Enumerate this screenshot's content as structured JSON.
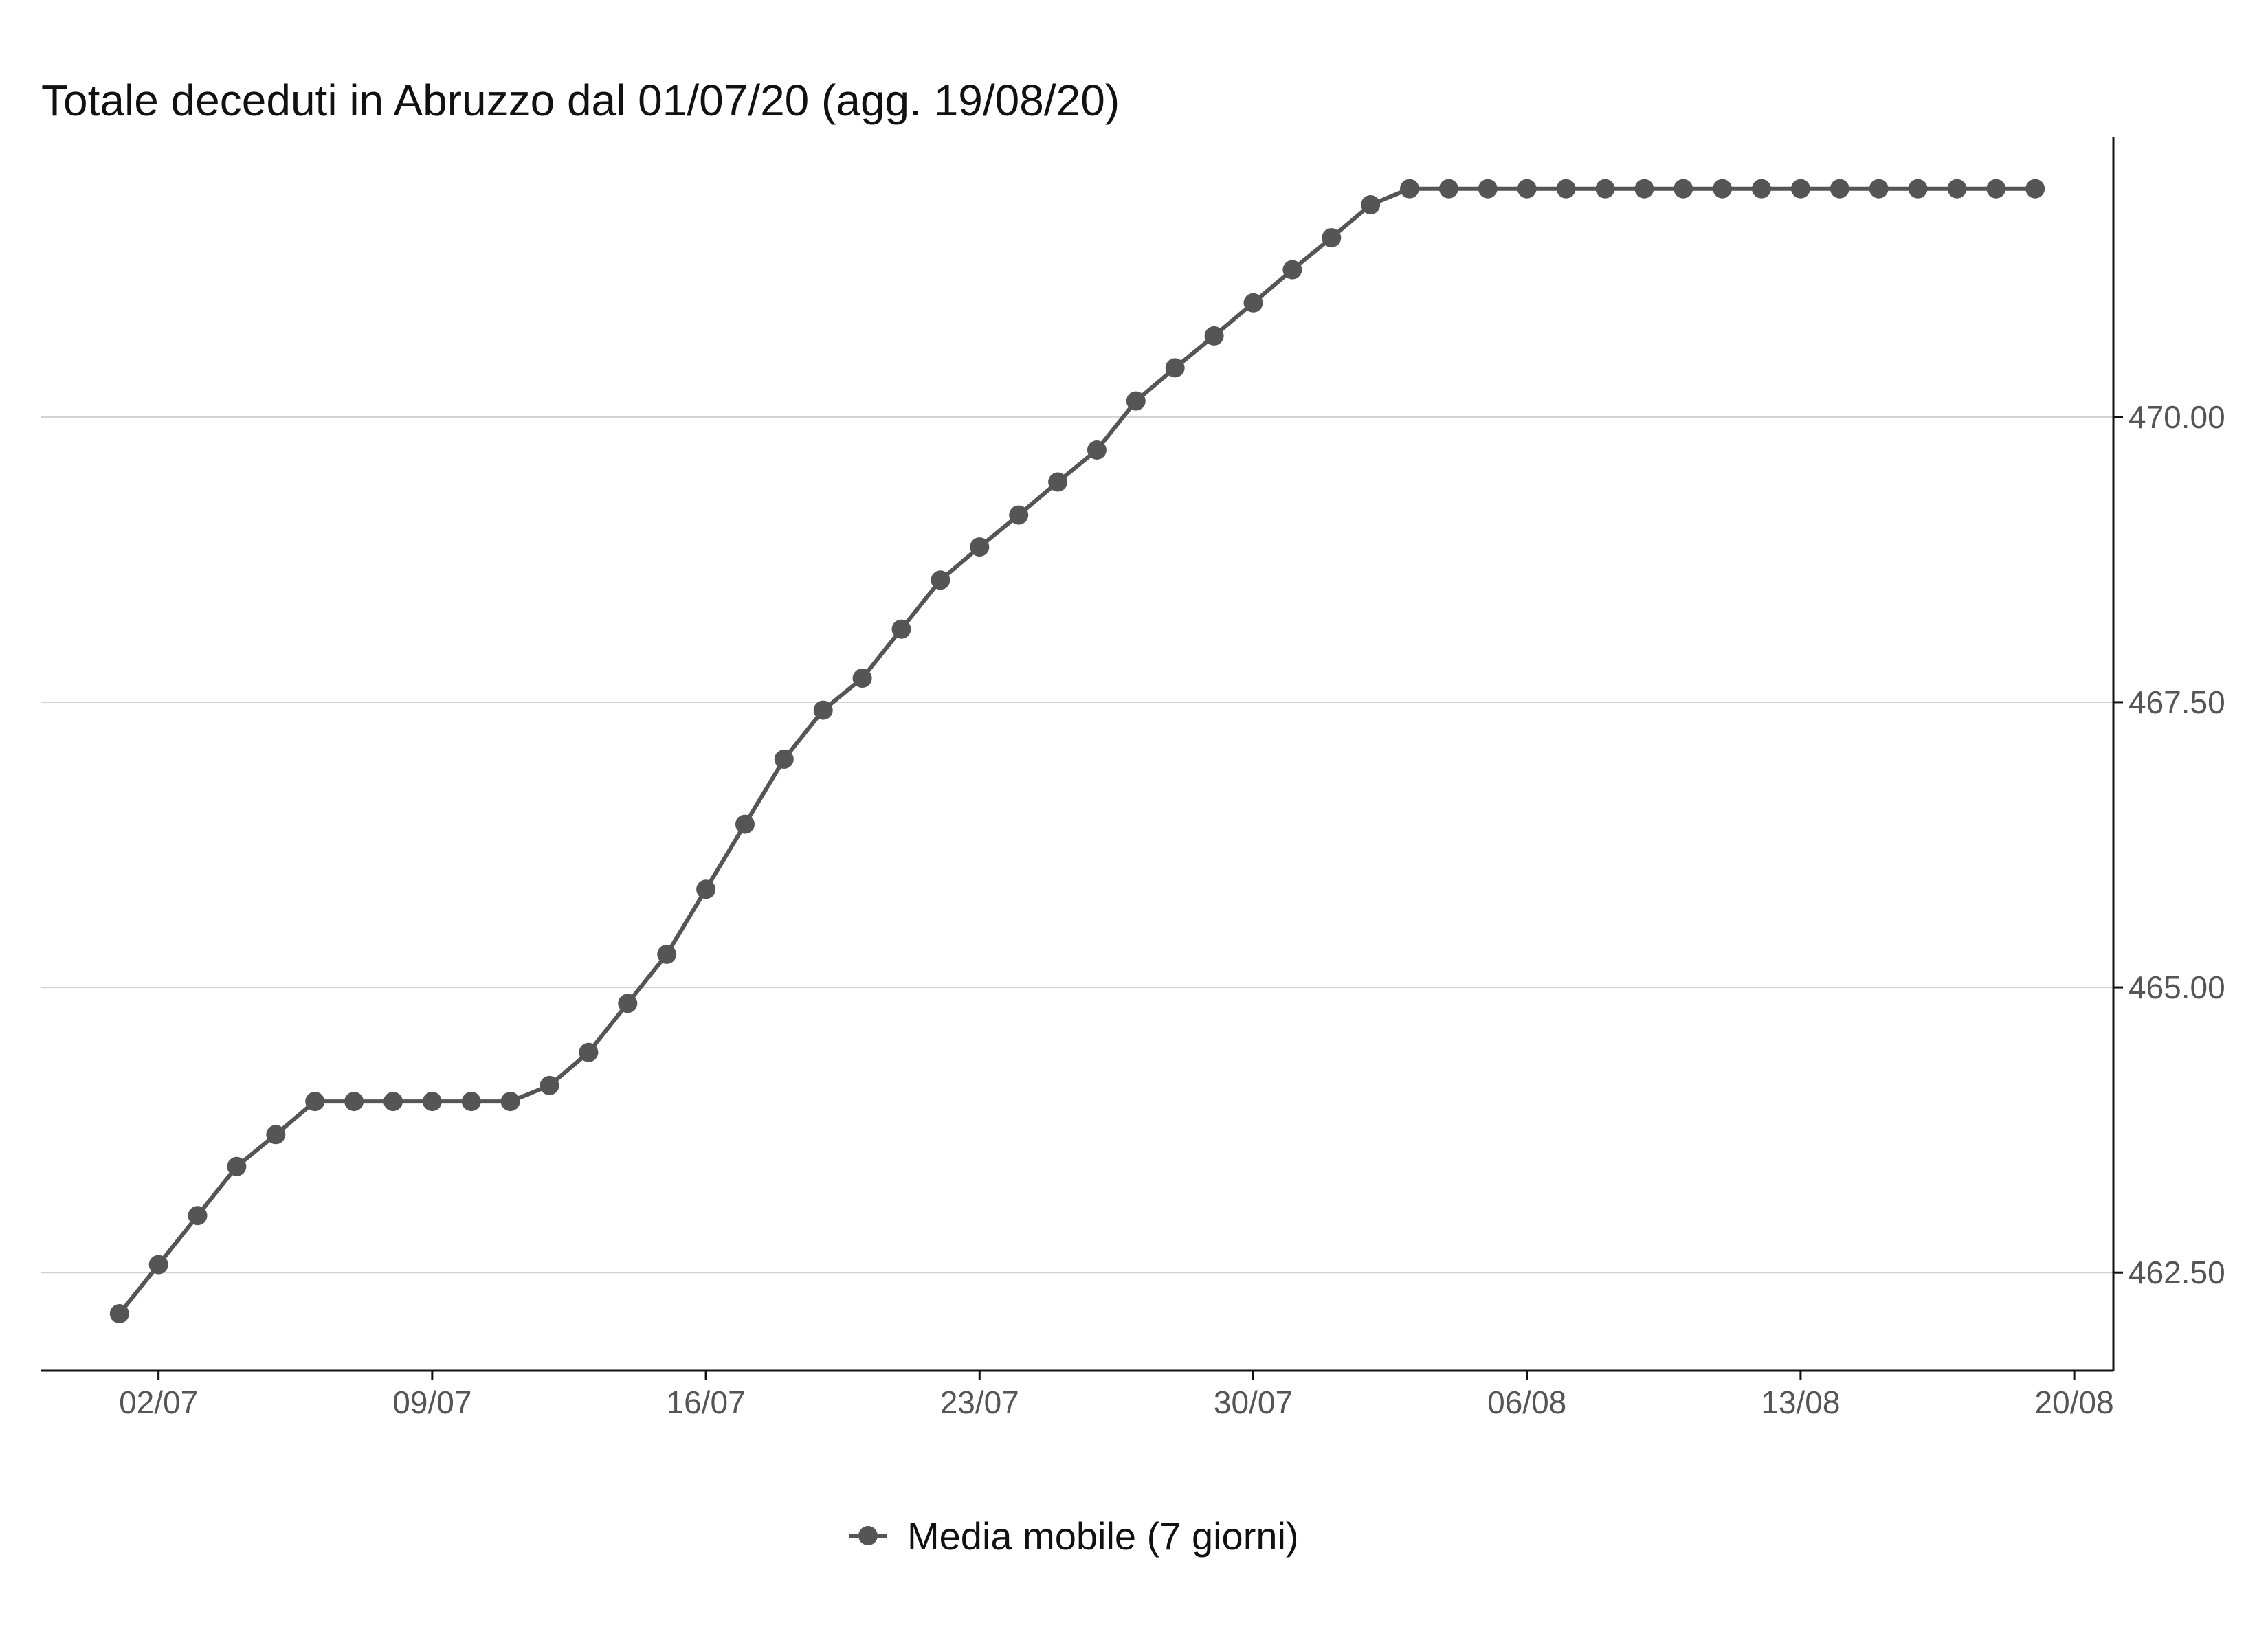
{
  "chart_data": {
    "type": "line",
    "title": "Totale deceduti in Abruzzo dal 01/07/20 (agg. 19/08/20)",
    "xlabel": "",
    "ylabel": "",
    "x_axis": {
      "type": "date",
      "range": [
        "2020-06-29",
        "2020-08-21"
      ],
      "ticks": [
        {
          "date": "2020-07-02",
          "label": "02/07"
        },
        {
          "date": "2020-07-09",
          "label": "09/07"
        },
        {
          "date": "2020-07-16",
          "label": "16/07"
        },
        {
          "date": "2020-07-23",
          "label": "23/07"
        },
        {
          "date": "2020-07-30",
          "label": "30/07"
        },
        {
          "date": "2020-08-06",
          "label": "06/08"
        },
        {
          "date": "2020-08-13",
          "label": "13/08"
        },
        {
          "date": "2020-08-20",
          "label": "20/08"
        }
      ]
    },
    "y_axis": {
      "position": "right",
      "range": [
        461.64,
        472.45
      ],
      "ticks": [
        {
          "value": 462.5,
          "label": "462.50"
        },
        {
          "value": 465.0,
          "label": "465.00"
        },
        {
          "value": 467.5,
          "label": "467.50"
        },
        {
          "value": 470.0,
          "label": "470.00"
        }
      ]
    },
    "grid": "horizontal major lines",
    "legend_position": "bottom",
    "colors": {
      "series": "#555555",
      "grid": "#d2d2d2",
      "axis": "#111111"
    },
    "series": [
      {
        "name": "Media mobile (7 giorni)",
        "x": [
          "2020-07-01",
          "2020-07-02",
          "2020-07-03",
          "2020-07-04",
          "2020-07-05",
          "2020-07-06",
          "2020-07-07",
          "2020-07-08",
          "2020-07-09",
          "2020-07-10",
          "2020-07-11",
          "2020-07-12",
          "2020-07-13",
          "2020-07-14",
          "2020-07-15",
          "2020-07-16",
          "2020-07-17",
          "2020-07-18",
          "2020-07-19",
          "2020-07-20",
          "2020-07-21",
          "2020-07-22",
          "2020-07-23",
          "2020-07-24",
          "2020-07-25",
          "2020-07-26",
          "2020-07-27",
          "2020-07-28",
          "2020-07-29",
          "2020-07-30",
          "2020-07-31",
          "2020-08-01",
          "2020-08-02",
          "2020-08-03",
          "2020-08-04",
          "2020-08-05",
          "2020-08-06",
          "2020-08-07",
          "2020-08-08",
          "2020-08-09",
          "2020-08-10",
          "2020-08-11",
          "2020-08-12",
          "2020-08-13",
          "2020-08-14",
          "2020-08-15",
          "2020-08-16",
          "2020-08-17",
          "2020-08-18",
          "2020-08-19"
        ],
        "values": [
          462.14,
          462.57,
          463.0,
          463.43,
          463.71,
          464.0,
          464.0,
          464.0,
          464.0,
          464.0,
          464.0,
          464.14,
          464.43,
          464.86,
          465.29,
          465.86,
          466.43,
          467.0,
          467.43,
          467.71,
          468.14,
          468.57,
          468.86,
          469.14,
          469.43,
          469.71,
          470.14,
          470.43,
          470.71,
          471.0,
          471.29,
          471.57,
          471.86,
          472.0,
          472.0,
          472.0,
          472.0,
          472.0,
          472.0,
          472.0,
          472.0,
          472.0,
          472.0,
          472.0,
          472.0,
          472.0,
          472.0,
          472.0,
          472.0,
          472.0
        ]
      }
    ]
  }
}
